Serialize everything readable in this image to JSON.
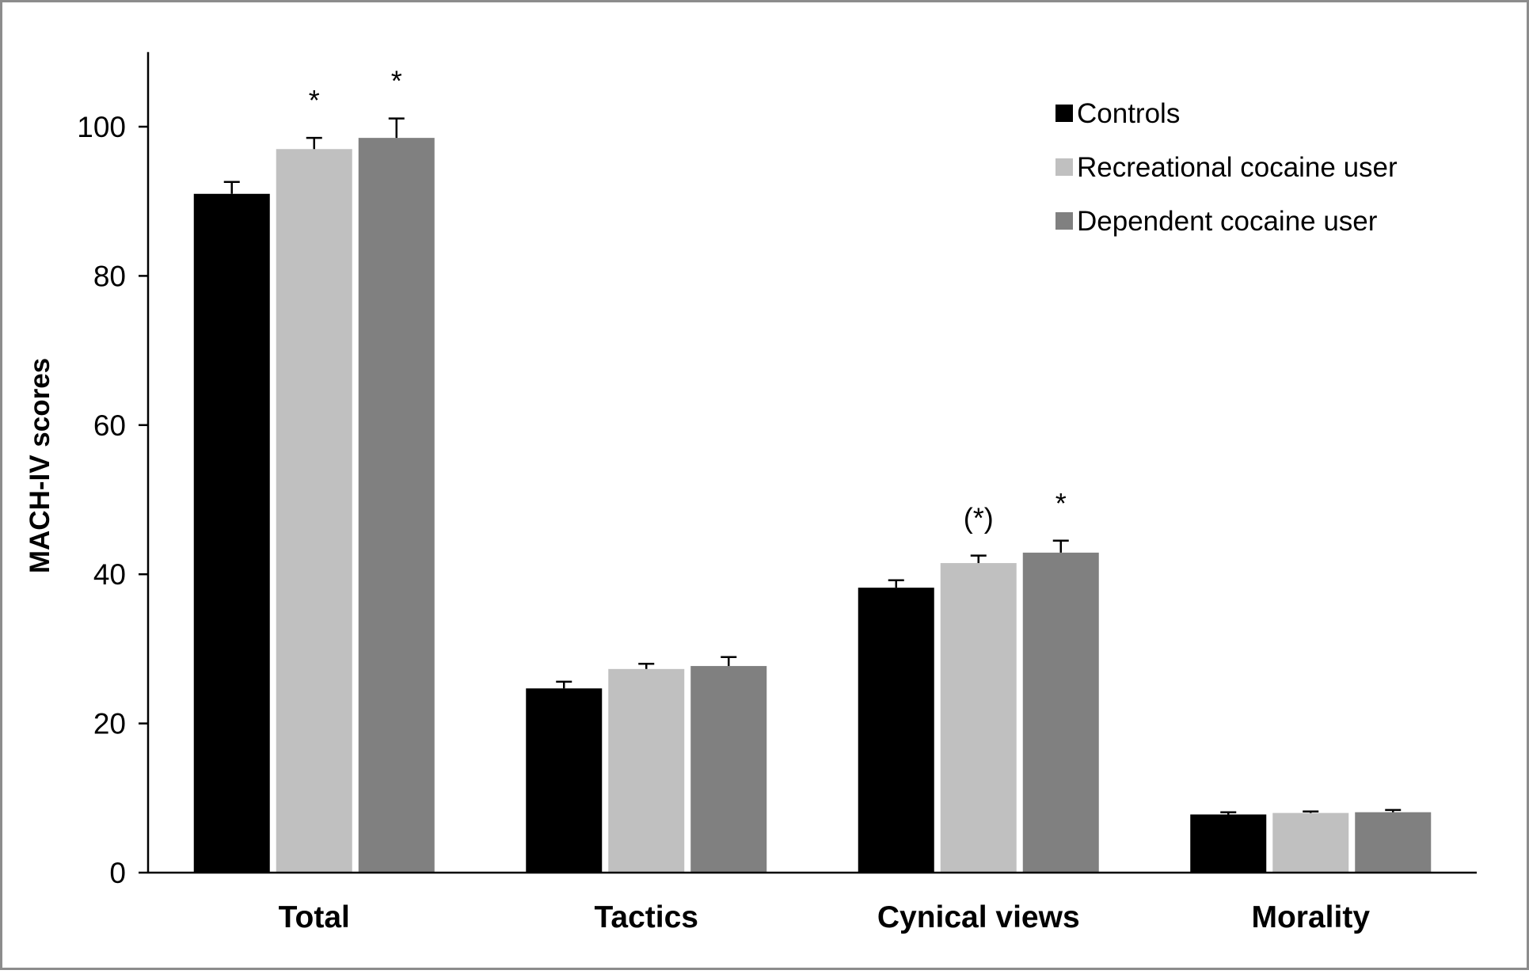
{
  "chart_data": {
    "type": "bar",
    "title": "",
    "xlabel": "",
    "ylabel": "MACH-IV scores",
    "ylim": [
      0,
      110
    ],
    "yticks": [
      0,
      20,
      40,
      60,
      80,
      100
    ],
    "grid": false,
    "legend_position": "top-right",
    "categories": [
      "Total",
      "Tactics",
      "Cynical views",
      "Morality"
    ],
    "series": [
      {
        "name": "Controls",
        "color": "#000000",
        "values": [
          91.0,
          24.7,
          38.2,
          7.8
        ],
        "errors": [
          1.6,
          0.9,
          1.0,
          0.3
        ],
        "annotations": [
          "",
          "",
          "",
          ""
        ]
      },
      {
        "name": "Recreational cocaine user",
        "color": "#c0c0c0",
        "values": [
          97.0,
          27.3,
          41.5,
          8.0
        ],
        "errors": [
          1.5,
          0.7,
          1.0,
          0.2
        ],
        "annotations": [
          "*",
          "",
          "(*)",
          ""
        ]
      },
      {
        "name": "Dependent cocaine user",
        "color": "#808080",
        "values": [
          98.5,
          27.7,
          42.9,
          8.1
        ],
        "errors": [
          2.6,
          1.2,
          1.6,
          0.3
        ],
        "annotations": [
          "*",
          "",
          "*",
          ""
        ]
      }
    ]
  }
}
